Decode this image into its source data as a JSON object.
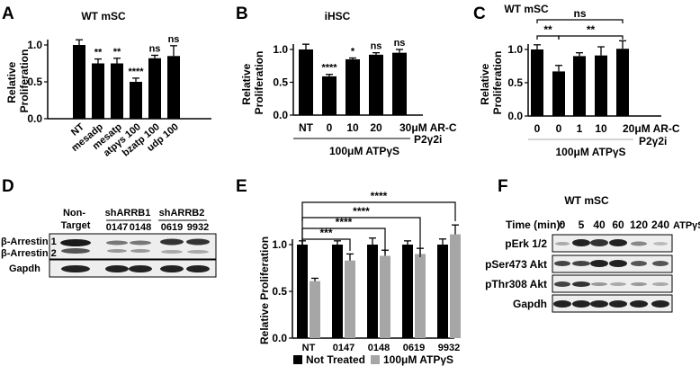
{
  "chart_data": [
    {
      "panel": "A",
      "type": "bar",
      "title": "WT mSC",
      "ylabel": "Relative Proliferation",
      "ylim": [
        0,
        1.0
      ],
      "yticks": [
        "0.0",
        "0.5",
        "1.0"
      ],
      "categories": [
        "NT",
        "mesadp",
        "mesatp",
        "atpγs 100",
        "bzatp 100",
        "udp 100"
      ],
      "values": [
        1.0,
        0.75,
        0.75,
        0.5,
        0.82,
        0.85
      ],
      "errors": [
        0.07,
        0.06,
        0.07,
        0.05,
        0.04,
        0.14
      ],
      "significance": [
        "",
        "**",
        "**",
        "****",
        "ns",
        "ns"
      ],
      "color": "#000000"
    },
    {
      "panel": "B",
      "type": "bar",
      "title": "iHSC",
      "ylabel": "Relative Proliferation",
      "ylim": [
        0,
        1.0
      ],
      "yticks": [
        "0.0",
        "0.5",
        "1.0"
      ],
      "categories": [
        "NT",
        "0",
        "10",
        "20",
        "30μM AR-C"
      ],
      "values": [
        1.0,
        0.59,
        0.85,
        0.92,
        0.95
      ],
      "errors": [
        0.08,
        0.03,
        0.02,
        0.03,
        0.05
      ],
      "significance": [
        "",
        "****",
        "*",
        "ns",
        "ns"
      ],
      "extra_label": "P2γ2i",
      "group_label": "100μM ATPγS",
      "color": "#000000"
    },
    {
      "panel": "C",
      "type": "bar",
      "title": "WT mSC",
      "ylabel": "Relative Proliferation",
      "ylim": [
        0,
        1.0
      ],
      "yticks": [
        "0.0",
        "0.5",
        "1.0"
      ],
      "categories": [
        "0",
        "0",
        "1",
        "10",
        "20μM AR-C"
      ],
      "values": [
        1.0,
        0.67,
        0.9,
        0.91,
        1.01
      ],
      "errors": [
        0.07,
        0.09,
        0.05,
        0.13,
        0.12
      ],
      "brackets": [
        "**",
        "**",
        "ns"
      ],
      "extra_label": "P2γ2i",
      "group_label": "100μM ATPγS",
      "color": "#000000"
    },
    {
      "panel": "E",
      "type": "bar",
      "ylabel": "Relative Proliferation",
      "ylim": [
        0,
        1.0
      ],
      "yticks": [
        "0.0",
        "0.5",
        "1.0"
      ],
      "categories": [
        "NT",
        "0147",
        "0148",
        "0619",
        "9932"
      ],
      "series": [
        {
          "name": "Not Treated",
          "color": "#000000",
          "values": [
            1.0,
            1.0,
            1.0,
            1.0,
            1.0
          ],
          "errors": [
            0.04,
            0.04,
            0.07,
            0.04,
            0.06
          ]
        },
        {
          "name": "100μM ATPγS",
          "color": "#a6a6a6",
          "values": [
            0.61,
            0.83,
            0.88,
            0.9,
            1.11
          ],
          "errors": [
            0.03,
            0.07,
            0.06,
            0.06,
            0.1
          ]
        }
      ],
      "brackets": [
        "****",
        "****",
        "****",
        "***"
      ]
    }
  ],
  "blots": {
    "d": {
      "panel": "D",
      "headers": [
        "Non-Target",
        "shARRB1",
        "shARRB2"
      ],
      "lanes": [
        "0147",
        "0148",
        "0619",
        "9932"
      ],
      "rows": [
        "β-Arrestin 1",
        "β-Arrestin 2",
        "Gapdh"
      ]
    },
    "f": {
      "panel": "F",
      "title": "WT mSC",
      "time_label": "Time (min):",
      "times": [
        "0",
        "5",
        "40",
        "60",
        "120",
        "240"
      ],
      "treatment": "ATPγS",
      "rows": [
        "pErk 1/2",
        "pSer473 Akt",
        "pThr308 Akt",
        "Gapdh"
      ]
    }
  }
}
